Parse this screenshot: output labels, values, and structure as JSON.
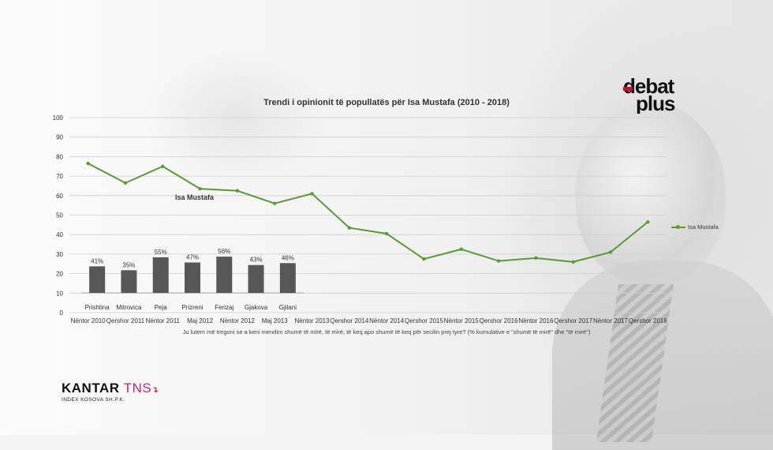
{
  "chart_data": [
    {
      "type": "line",
      "title": "Trendi i opinionit të popullatës për Isa Mustafa (2010 - 2018)",
      "categories": [
        "Nëntor 2010",
        "Qershor 2011",
        "Nëntor 2011",
        "Maj 2012",
        "Nëntor 2012",
        "Maj 2013",
        "Nëntor 2013",
        "Qershor 2014",
        "Nëntor 2014",
        "Qershor 2015",
        "Nëntor 2015",
        "Qershor 2016",
        "Nëntor 2016",
        "Qershor 2017",
        "Nëntor 2017",
        "Qershor 2018"
      ],
      "series": [
        {
          "name": "Isa Mustafa",
          "values": [
            76.5,
            66.5,
            75,
            63.5,
            62.5,
            56,
            61,
            43.5,
            40.5,
            27.5,
            32.5,
            26.5,
            28,
            26,
            31,
            46.5
          ]
        }
      ],
      "ylim": [
        0,
        100
      ],
      "yticks": [
        0,
        10,
        20,
        30,
        40,
        50,
        60,
        70,
        80,
        90,
        100
      ],
      "grid": true,
      "legend": "right",
      "xlabel": "Ju lutem më tregoni se a keni mendim shumë të mirë, të mirë, të keq apo shumë të keq për secilin prej tyre? (% kumulative e \"shumë të mirë\" dhe \"të mirë\")",
      "ylabel": "",
      "series_annotation": "Isa Mustafa",
      "color": "#5a9a35"
    },
    {
      "type": "bar",
      "title": "",
      "categories": [
        "Prishtina",
        "Mitrovica",
        "Peja",
        "Prizreni",
        "Ferizaj",
        "Gjakova",
        "Gjilani"
      ],
      "values": [
        41,
        35,
        55,
        47,
        56,
        43,
        46
      ],
      "value_labels": [
        "41%",
        "35%",
        "55%",
        "47%",
        "56%",
        "43%",
        "46%"
      ],
      "color": "#575757"
    }
  ],
  "branding": {
    "debat_top": "debat",
    "debat_bottom": "plus",
    "kantar_main": "KANTAR",
    "kantar_accent": "TNS",
    "kantar_sub": "INDEX KOSOVA SH.P.K."
  }
}
